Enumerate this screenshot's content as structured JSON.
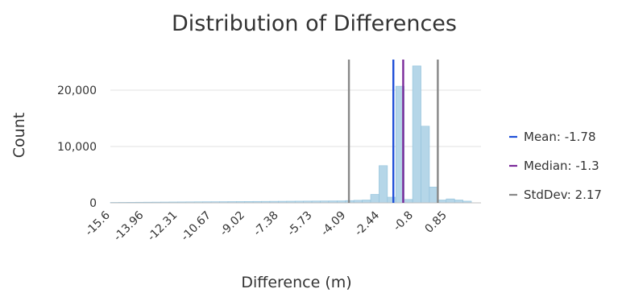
{
  "chart_data": {
    "type": "bar",
    "title": "Distribution of Differences",
    "xlabel": "Difference (m)",
    "ylabel": "Count",
    "xlim": [
      -15.6,
      2.5
    ],
    "ylim": [
      0,
      26000
    ],
    "grid": true,
    "legend_position": "right",
    "x_tick_labels": [
      "-15.6",
      "-13.96",
      "-12.31",
      "-10.67",
      "-9.02",
      "-7.38",
      "-5.73",
      "-4.09",
      "-2.44",
      "-0.8",
      "0.85"
    ],
    "x_tick_values": [
      -15.6,
      -13.96,
      -12.31,
      -10.67,
      -9.02,
      -7.38,
      -5.73,
      -4.09,
      -2.44,
      -0.8,
      0.85
    ],
    "y_ticks": [
      0,
      10000,
      20000
    ],
    "y_tick_labels": [
      "0",
      "10,000",
      "20,000"
    ],
    "bin_width": 0.41,
    "bins": [
      {
        "x0": -15.6,
        "count": 80
      },
      {
        "x0": -15.19,
        "count": 90
      },
      {
        "x0": -14.78,
        "count": 100
      },
      {
        "x0": -14.37,
        "count": 110
      },
      {
        "x0": -13.96,
        "count": 120
      },
      {
        "x0": -13.55,
        "count": 130
      },
      {
        "x0": -13.14,
        "count": 140
      },
      {
        "x0": -12.73,
        "count": 150
      },
      {
        "x0": -12.32,
        "count": 160
      },
      {
        "x0": -11.91,
        "count": 170
      },
      {
        "x0": -11.5,
        "count": 180
      },
      {
        "x0": -11.09,
        "count": 190
      },
      {
        "x0": -10.68,
        "count": 200
      },
      {
        "x0": -10.27,
        "count": 210
      },
      {
        "x0": -9.86,
        "count": 220
      },
      {
        "x0": -9.45,
        "count": 230
      },
      {
        "x0": -9.04,
        "count": 240
      },
      {
        "x0": -8.63,
        "count": 250
      },
      {
        "x0": -8.22,
        "count": 260
      },
      {
        "x0": -7.81,
        "count": 270
      },
      {
        "x0": -7.4,
        "count": 280
      },
      {
        "x0": -6.99,
        "count": 290
      },
      {
        "x0": -6.58,
        "count": 300
      },
      {
        "x0": -6.17,
        "count": 310
      },
      {
        "x0": -5.76,
        "count": 320
      },
      {
        "x0": -5.35,
        "count": 330
      },
      {
        "x0": -4.94,
        "count": 340
      },
      {
        "x0": -4.53,
        "count": 350
      },
      {
        "x0": -4.12,
        "count": 400
      },
      {
        "x0": -3.71,
        "count": 450
      },
      {
        "x0": -3.3,
        "count": 500
      },
      {
        "x0": -2.89,
        "count": 1500
      },
      {
        "x0": -2.48,
        "count": 6600
      },
      {
        "x0": -2.07,
        "count": 1000
      },
      {
        "x0": -1.66,
        "count": 20700
      },
      {
        "x0": -1.25,
        "count": 600
      },
      {
        "x0": -0.84,
        "count": 24300
      },
      {
        "x0": -0.43,
        "count": 13600
      },
      {
        "x0": -0.02,
        "count": 2800
      },
      {
        "x0": 0.39,
        "count": 500
      },
      {
        "x0": 0.8,
        "count": 700
      },
      {
        "x0": 1.21,
        "count": 500
      },
      {
        "x0": 1.62,
        "count": 300
      }
    ],
    "reference_lines": [
      {
        "name": "Mean",
        "value": -1.78,
        "color": "#1f4fd8"
      },
      {
        "name": "Median",
        "value": -1.3,
        "color": "#7b2a9a"
      },
      {
        "name": "StdDev",
        "values": [
          -3.95,
          0.39
        ],
        "color": "#888888"
      }
    ],
    "legend": [
      {
        "label": "Mean: -1.78",
        "color": "#1f4fd8"
      },
      {
        "label": "Median: -1.3",
        "color": "#7b2a9a"
      },
      {
        "label": "StdDev: 2.17",
        "color": "#888888"
      }
    ],
    "colors": {
      "bar_fill": "#b5d6e8",
      "bar_stroke": "#8fc0db",
      "grid": "#e0e0e0",
      "axis": "#bfbfbf"
    }
  }
}
